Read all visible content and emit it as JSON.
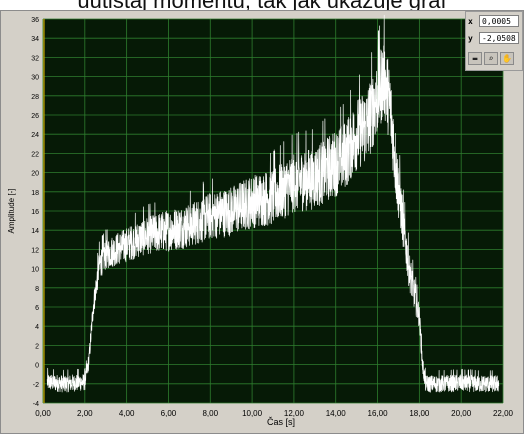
{
  "caption": {
    "text": "uutistaj momentu, tak jak ukazuje graf"
  },
  "cursor": {
    "x_label": "x",
    "x_value": "0,0005",
    "y_label": "y",
    "y_value": "-2,0508"
  },
  "tools": [
    {
      "icon": "cursor-tool-icon"
    },
    {
      "icon": "zoom-icon"
    },
    {
      "icon": "pan-icon"
    }
  ],
  "colors": {
    "plot_bg": "#061a06",
    "grid": "#2e7d2e",
    "signal": "#ffffff",
    "frame": "#d4d0c8",
    "marker": "#c8a000"
  },
  "chart_data": {
    "type": "line",
    "title": "",
    "xlabel": "Čas [s]",
    "ylabel": "Amplitude [-]",
    "xlim": [
      0,
      22
    ],
    "ylim": [
      -4,
      36
    ],
    "x_ticks": [
      "0,00",
      "2,00",
      "4,00",
      "6,00",
      "8,00",
      "10,00",
      "12,00",
      "14,00",
      "16,00",
      "18,00",
      "20,00",
      "22,00"
    ],
    "y_ticks": [
      "-4",
      "-2",
      "0",
      "2",
      "4",
      "6",
      "8",
      "10",
      "12",
      "14",
      "16",
      "18",
      "20",
      "22",
      "24",
      "26",
      "28",
      "30",
      "32",
      "34",
      "36"
    ],
    "grid": true,
    "series": [
      {
        "x": [
          0.2,
          1.0,
          2.0,
          2.2,
          2.4,
          2.7,
          3.0,
          4.0,
          5.0,
          6.0,
          7.0,
          8.0,
          9.0,
          10.0,
          11.0,
          12.0,
          13.0,
          14.0,
          14.5,
          15.0,
          15.5,
          16.0,
          16.3,
          16.6,
          16.9,
          17.2,
          17.5,
          17.8,
          18.0,
          18.15,
          18.3,
          19.0,
          20.0,
          21.0,
          21.8
        ],
        "y": [
          -1.8,
          -2.0,
          -1.8,
          0.5,
          6.0,
          10.5,
          11.5,
          12.5,
          13.5,
          14.0,
          14.5,
          15.5,
          16.0,
          17.0,
          17.5,
          19.0,
          19.5,
          21.0,
          22.0,
          24.0,
          25.0,
          28.0,
          30.0,
          27.0,
          20.0,
          15.0,
          10.0,
          7.0,
          5.0,
          0.0,
          -2.0,
          -2.0,
          -1.9,
          -2.0,
          -2.0
        ],
        "noise": [
          0.9,
          0.9,
          0.9,
          0.9,
          1.2,
          1.6,
          1.6,
          1.8,
          2.0,
          2.2,
          2.3,
          2.5,
          2.6,
          2.8,
          3.0,
          3.2,
          3.3,
          3.5,
          3.6,
          3.8,
          4.0,
          4.2,
          4.2,
          4.0,
          3.5,
          2.5,
          2.0,
          1.6,
          1.2,
          1.0,
          0.9,
          0.9,
          0.9,
          0.9,
          0.9
        ]
      }
    ]
  }
}
